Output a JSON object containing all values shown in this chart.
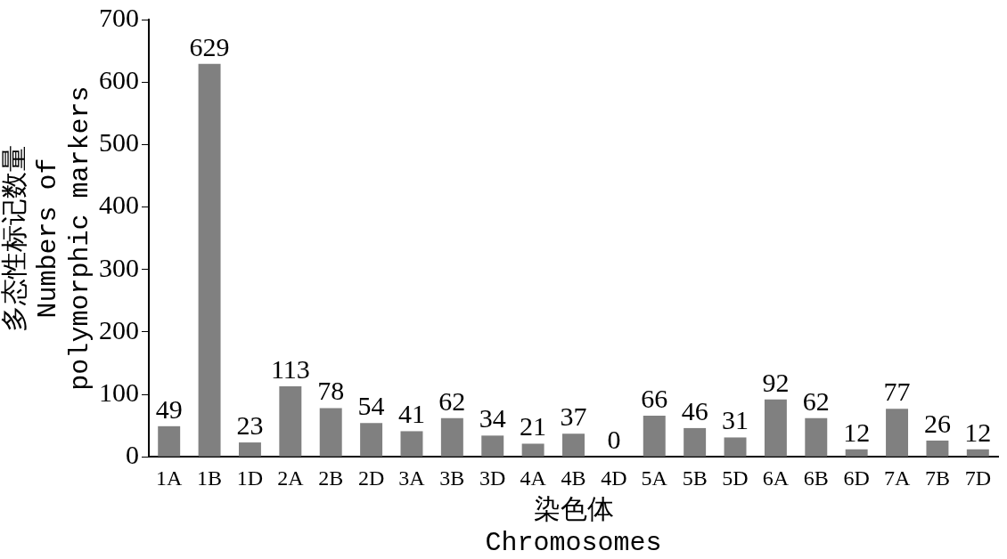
{
  "chart_data": {
    "type": "bar",
    "xlabel": "染色体\nChromosomes",
    "ylabel": "多态性标记数量\nNumbers of\npolymorphic markers",
    "categories": [
      "1A",
      "1B",
      "1D",
      "2A",
      "2B",
      "2D",
      "3A",
      "3B",
      "3D",
      "4A",
      "4B",
      "4D",
      "5A",
      "5B",
      "5D",
      "6A",
      "6B",
      "6D",
      "7A",
      "7B",
      "7D"
    ],
    "values": [
      49,
      629,
      23,
      113,
      78,
      54,
      41,
      62,
      34,
      21,
      37,
      0,
      66,
      46,
      31,
      92,
      62,
      12,
      77,
      26,
      12
    ],
    "color": "#808080",
    "ylim": [
      0,
      700
    ],
    "yticks": [
      0,
      100,
      200,
      300,
      400,
      500,
      600,
      700
    ],
    "grid": false,
    "data_labels": true
  }
}
